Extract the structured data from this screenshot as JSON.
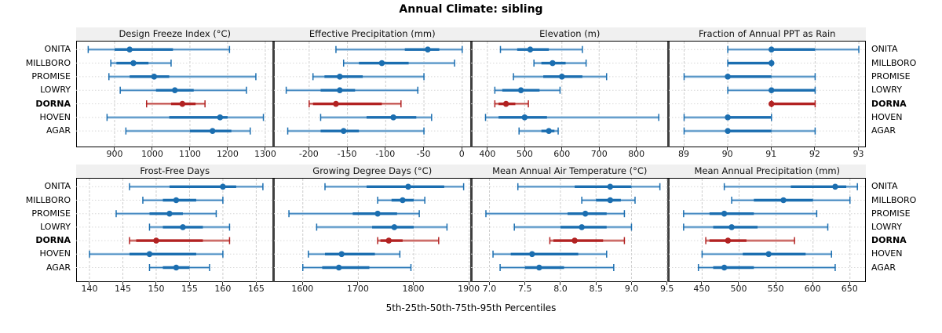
{
  "title": "Annual Climate: sibling",
  "x_axis_title": "5th-25th-50th-75th-95th Percentiles",
  "sites": [
    "ONITA",
    "MILLBORO",
    "PROMISE",
    "LOWRY",
    "DORNA",
    "HOVEN",
    "AGAR"
  ],
  "highlight_site": "DORNA",
  "colors": {
    "blue": "#1b6eb0",
    "blue_light": "#a8c9e4",
    "red": "#b22222",
    "red_light": "#e2a7a2",
    "strip_bg": "#f0f0f0",
    "grid": "#cdcdcd",
    "row_guide": "#d8d8d8",
    "divider": "#3f3f3f"
  },
  "chart_data": {
    "type": "interval-dotplot-trellis",
    "percentiles": [
      5,
      25,
      50,
      75,
      95
    ],
    "note": "each row shows 5th-25th-50th-75th-95th percentiles; dot = median",
    "panels": [
      {
        "title": "Design Freeze Index (°C)",
        "row": 0,
        "col": 0,
        "domain": [
          798,
          1322
        ],
        "ticks": [
          900,
          1000,
          1100,
          1200,
          1300
        ],
        "tick_labels": [
          "900",
          "1000",
          "1100",
          "1200",
          "1300"
        ],
        "values": {
          "ONITA": [
            830,
            900,
            940,
            1055,
            1205
          ],
          "MILLBORO": [
            890,
            905,
            950,
            990,
            1050
          ],
          "PROMISE": [
            885,
            940,
            1005,
            1045,
            1275
          ],
          "LOWRY": [
            915,
            1010,
            1060,
            1110,
            1250
          ],
          "DORNA": [
            985,
            1050,
            1080,
            1115,
            1140
          ],
          "HOVEN": [
            880,
            1045,
            1180,
            1200,
            1295
          ],
          "AGAR": [
            930,
            1100,
            1160,
            1210,
            1260
          ]
        }
      },
      {
        "title": "Effective Precipitation (mm)",
        "row": 0,
        "col": 1,
        "domain": [
          -246,
          12
        ],
        "ticks": [
          -200,
          -150,
          -100,
          -50,
          0
        ],
        "tick_labels": [
          "-200",
          "-150",
          "-100",
          "-50",
          "0"
        ],
        "values": {
          "ONITA": [
            -165,
            -75,
            -45,
            -30,
            0
          ],
          "MILLBORO": [
            -155,
            -135,
            -105,
            -70,
            -10
          ],
          "PROMISE": [
            -195,
            -180,
            -160,
            -130,
            -50
          ],
          "LOWRY": [
            -230,
            -185,
            -160,
            -140,
            -58
          ],
          "DORNA": [
            -200,
            -195,
            -165,
            -105,
            -80
          ],
          "HOVEN": [
            -185,
            -125,
            -90,
            -60,
            -40
          ],
          "AGAR": [
            -228,
            -185,
            -155,
            -135,
            -50
          ]
        }
      },
      {
        "title": "Elevation (m)",
        "row": 0,
        "col": 2,
        "domain": [
          356,
          886
        ],
        "ticks": [
          400,
          500,
          600,
          700,
          800
        ],
        "tick_labels": [
          "400",
          "500",
          "600",
          "700",
          "800"
        ],
        "values": {
          "ONITA": [
            435,
            480,
            515,
            565,
            655
          ],
          "MILLBORO": [
            525,
            545,
            575,
            610,
            665
          ],
          "PROMISE": [
            470,
            550,
            600,
            655,
            720
          ],
          "LOWRY": [
            420,
            440,
            490,
            540,
            595
          ],
          "DORNA": [
            420,
            430,
            450,
            475,
            510
          ],
          "HOVEN": [
            395,
            430,
            500,
            560,
            860
          ],
          "AGAR": [
            485,
            545,
            565,
            580,
            590
          ]
        }
      },
      {
        "title": "Fraction of Annual PPT as Rain",
        "row": 0,
        "col": 3,
        "domain": [
          88.65,
          93.17
        ],
        "ticks": [
          89,
          90,
          91,
          92,
          93
        ],
        "tick_labels": [
          "89",
          "90",
          "91",
          "92",
          "93"
        ],
        "values": {
          "ONITA": [
            90,
            91,
            91,
            92,
            93
          ],
          "MILLBORO": [
            90,
            90,
            91,
            91,
            91
          ],
          "PROMISE": [
            89,
            90,
            90,
            91,
            92
          ],
          "LOWRY": [
            90,
            91,
            91,
            92,
            92
          ],
          "DORNA": [
            91,
            91,
            91,
            92,
            92
          ],
          "HOVEN": [
            89,
            90,
            90,
            91,
            91
          ],
          "AGAR": [
            89,
            90,
            90,
            91,
            92
          ]
        }
      },
      {
        "title": "Frost-Free Days",
        "row": 1,
        "col": 0,
        "domain": [
          138,
          167.6
        ],
        "ticks": [
          140,
          145,
          150,
          155,
          160,
          165
        ],
        "tick_labels": [
          "140",
          "145",
          "150",
          "155",
          "160",
          "165"
        ],
        "values": {
          "ONITA": [
            146,
            152,
            160,
            162,
            166
          ],
          "MILLBORO": [
            148,
            151,
            153,
            156,
            160
          ],
          "PROMISE": [
            144,
            149,
            152,
            154,
            159
          ],
          "LOWRY": [
            149,
            151,
            154,
            157,
            161
          ],
          "DORNA": [
            146,
            147,
            150,
            157,
            161
          ],
          "HOVEN": [
            140,
            146,
            149,
            156,
            160
          ],
          "AGAR": [
            149,
            151,
            153,
            155,
            158
          ]
        }
      },
      {
        "title": "Growing Degree Days (°C)",
        "row": 1,
        "col": 1,
        "domain": [
          1548,
          1904
        ],
        "ticks": [
          1600,
          1700,
          1800,
          1900
        ],
        "tick_labels": [
          "1600",
          "1700",
          "1800",
          "1900"
        ],
        "values": {
          "ONITA": [
            1640,
            1715,
            1790,
            1855,
            1890
          ],
          "MILLBORO": [
            1735,
            1760,
            1780,
            1800,
            1820
          ],
          "PROMISE": [
            1575,
            1690,
            1735,
            1770,
            1810
          ],
          "LOWRY": [
            1625,
            1725,
            1765,
            1800,
            1860
          ],
          "DORNA": [
            1735,
            1740,
            1755,
            1780,
            1845
          ],
          "HOVEN": [
            1610,
            1640,
            1670,
            1730,
            1775
          ],
          "AGAR": [
            1600,
            1635,
            1665,
            1720,
            1795
          ]
        }
      },
      {
        "title": "Mean Annual Air Temperature (°C)",
        "row": 1,
        "col": 2,
        "domain": [
          6.74,
          9.52
        ],
        "ticks": [
          7.0,
          7.5,
          8.0,
          8.5,
          9.0,
          9.5
        ],
        "tick_labels": [
          "7.0",
          "7.5",
          "8.0",
          "8.5",
          "9.0",
          "9.5"
        ],
        "values": {
          "ONITA": [
            7.4,
            8.2,
            8.7,
            9.0,
            9.4
          ],
          "MILLBORO": [
            8.3,
            8.5,
            8.7,
            8.85,
            9.05
          ],
          "PROMISE": [
            6.95,
            8.1,
            8.35,
            8.65,
            8.9
          ],
          "LOWRY": [
            7.35,
            8.0,
            8.3,
            8.65,
            9.0
          ],
          "DORNA": [
            7.85,
            7.9,
            8.2,
            8.6,
            8.9
          ],
          "HOVEN": [
            7.05,
            7.3,
            7.6,
            8.25,
            8.65
          ],
          "AGAR": [
            7.15,
            7.5,
            7.7,
            8.05,
            8.75
          ]
        }
      },
      {
        "title": "Mean Annual Precipitation (mm)",
        "row": 1,
        "col": 3,
        "domain": [
          405,
          672
        ],
        "ticks": [
          450,
          500,
          550,
          600,
          650
        ],
        "tick_labels": [
          "450",
          "500",
          "550",
          "600",
          "650"
        ],
        "values": {
          "ONITA": [
            480,
            570,
            630,
            645,
            660
          ],
          "MILLBORO": [
            490,
            520,
            560,
            600,
            650
          ],
          "PROMISE": [
            425,
            460,
            480,
            520,
            605
          ],
          "LOWRY": [
            425,
            465,
            490,
            525,
            620
          ],
          "DORNA": [
            455,
            460,
            485,
            510,
            575
          ],
          "HOVEN": [
            450,
            505,
            540,
            590,
            625
          ],
          "AGAR": [
            445,
            465,
            480,
            520,
            630
          ]
        }
      }
    ]
  }
}
